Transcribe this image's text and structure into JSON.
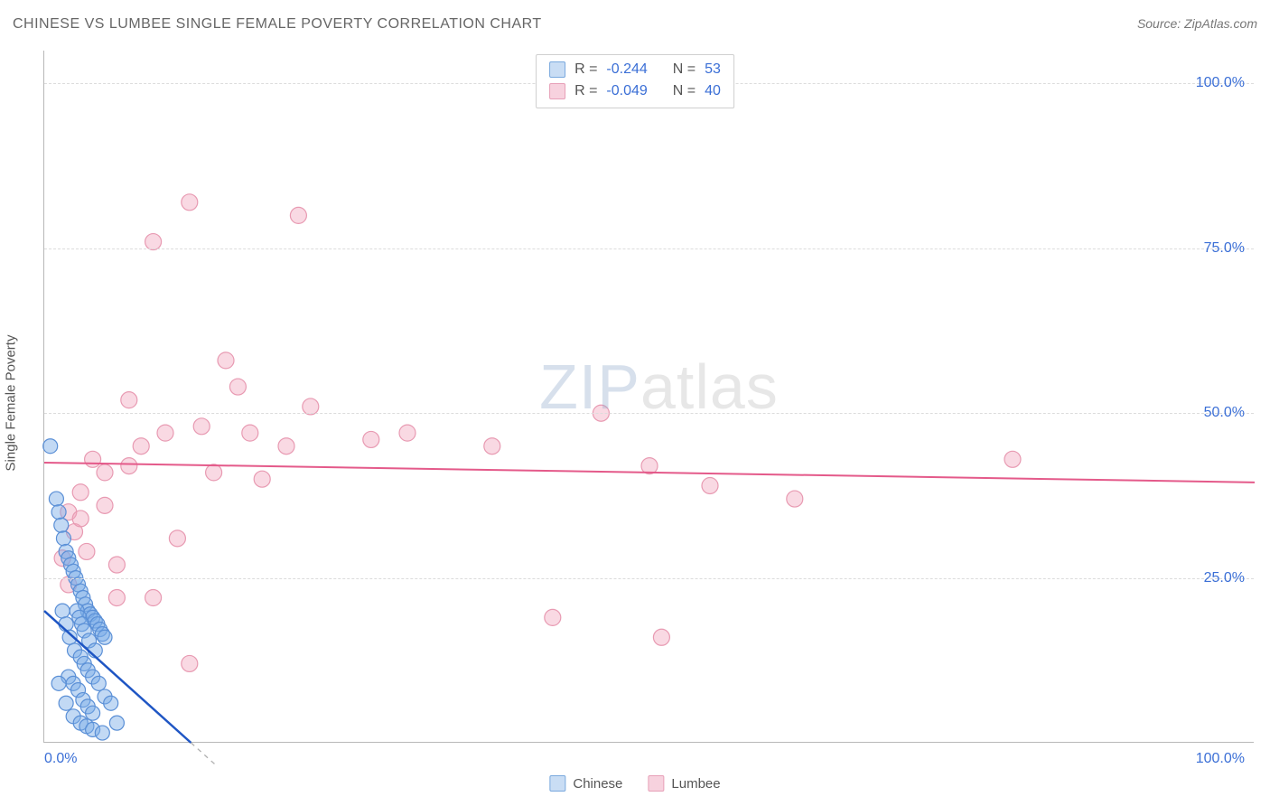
{
  "header": {
    "title": "CHINESE VS LUMBEE SINGLE FEMALE POVERTY CORRELATION CHART",
    "source_prefix": "Source: ",
    "source_name": "ZipAtlas.com"
  },
  "axes": {
    "ylabel": "Single Female Poverty",
    "xlim": [
      0,
      100
    ],
    "ylim": [
      0,
      105
    ],
    "xtick_left": "0.0%",
    "xtick_right": "100.0%",
    "yticks": [
      {
        "v": 25,
        "label": "25.0%"
      },
      {
        "v": 50,
        "label": "50.0%"
      },
      {
        "v": 75,
        "label": "75.0%"
      },
      {
        "v": 100,
        "label": "100.0%"
      }
    ]
  },
  "watermark": {
    "zip": "ZIP",
    "atlas": "atlas"
  },
  "series": {
    "chinese": {
      "label": "Chinese",
      "color_fill": "rgba(120,170,230,0.45)",
      "color_stroke": "#5a8fd6",
      "swatch_fill": "#c9ddf4",
      "swatch_border": "#7aa9de",
      "marker_r": 8,
      "line_color": "#1f56c4",
      "line_width": 2.5,
      "trend": {
        "y_at_x0": 20,
        "y_at_x100": -145
      },
      "zero_dash": {
        "y_at_x0_cont": 20,
        "x_at_y0": 13
      },
      "R": "-0.244",
      "N": "53",
      "points": [
        [
          0.5,
          45
        ],
        [
          1.0,
          37
        ],
        [
          1.2,
          35
        ],
        [
          1.4,
          33
        ],
        [
          1.6,
          31
        ],
        [
          1.8,
          29
        ],
        [
          2.0,
          28
        ],
        [
          2.2,
          27
        ],
        [
          2.4,
          26
        ],
        [
          2.6,
          25
        ],
        [
          2.8,
          24
        ],
        [
          3.0,
          23
        ],
        [
          3.2,
          22
        ],
        [
          3.4,
          21
        ],
        [
          3.6,
          20
        ],
        [
          3.8,
          19.5
        ],
        [
          4.0,
          19
        ],
        [
          4.2,
          18.5
        ],
        [
          4.4,
          18
        ],
        [
          4.6,
          17.2
        ],
        [
          4.8,
          16.5
        ],
        [
          5.0,
          16
        ],
        [
          1.5,
          20
        ],
        [
          1.8,
          18
        ],
        [
          2.1,
          16
        ],
        [
          2.5,
          14
        ],
        [
          3.0,
          13
        ],
        [
          3.3,
          12
        ],
        [
          3.6,
          11
        ],
        [
          4.0,
          10
        ],
        [
          4.5,
          9
        ],
        [
          5.0,
          7
        ],
        [
          2.0,
          10
        ],
        [
          2.4,
          9
        ],
        [
          2.8,
          8
        ],
        [
          3.2,
          6.5
        ],
        [
          3.6,
          5.5
        ],
        [
          4.0,
          4.5
        ],
        [
          1.2,
          9
        ],
        [
          1.8,
          6
        ],
        [
          2.4,
          4
        ],
        [
          3.0,
          3
        ],
        [
          3.5,
          2.5
        ],
        [
          4.0,
          2
        ],
        [
          5.5,
          6
        ],
        [
          6.0,
          3
        ],
        [
          4.8,
          1.5
        ],
        [
          2.7,
          20
        ],
        [
          2.9,
          19
        ],
        [
          3.1,
          18
        ],
        [
          3.3,
          17
        ],
        [
          3.7,
          15.5
        ],
        [
          4.2,
          14
        ]
      ]
    },
    "lumbee": {
      "label": "Lumbee",
      "color_fill": "rgba(240,160,185,0.40)",
      "color_stroke": "#e89ab2",
      "swatch_fill": "#f7d2de",
      "swatch_border": "#e7a0b8",
      "marker_r": 9,
      "line_color": "#e45a8a",
      "line_width": 2,
      "trend": {
        "y_at_x0": 42.5,
        "y_at_x100": 39.5
      },
      "R": "-0.049",
      "N": "40",
      "points": [
        [
          2,
          35
        ],
        [
          2.5,
          32
        ],
        [
          3,
          34
        ],
        [
          3.5,
          29
        ],
        [
          4,
          43
        ],
        [
          5,
          41
        ],
        [
          6,
          22
        ],
        [
          7,
          52
        ],
        [
          8,
          45
        ],
        [
          9,
          76
        ],
        [
          10,
          47
        ],
        [
          11,
          31
        ],
        [
          12,
          82
        ],
        [
          13,
          48
        ],
        [
          14,
          41
        ],
        [
          15,
          58
        ],
        [
          16,
          54
        ],
        [
          17,
          47
        ],
        [
          18,
          40
        ],
        [
          20,
          45
        ],
        [
          21,
          80
        ],
        [
          22,
          51
        ],
        [
          12,
          12
        ],
        [
          27,
          46
        ],
        [
          30,
          47
        ],
        [
          37,
          45
        ],
        [
          42,
          19
        ],
        [
          46,
          50
        ],
        [
          50,
          42
        ],
        [
          51,
          16
        ],
        [
          55,
          39
        ],
        [
          62,
          37
        ],
        [
          80,
          43
        ],
        [
          7,
          42
        ],
        [
          9,
          22
        ],
        [
          5,
          36
        ],
        [
          6,
          27
        ],
        [
          1.5,
          28
        ],
        [
          2,
          24
        ],
        [
          3,
          38
        ]
      ]
    }
  },
  "legend_top": {
    "R_label": "R =",
    "N_label": "N ="
  },
  "chart_style": {
    "background": "#ffffff",
    "grid_color": "#dcdcdc",
    "axis_color": "#b8b8b8",
    "tick_color": "#3b6fd6",
    "title_fontsize": 16,
    "tick_fontsize": 16,
    "label_fontsize": 15
  }
}
